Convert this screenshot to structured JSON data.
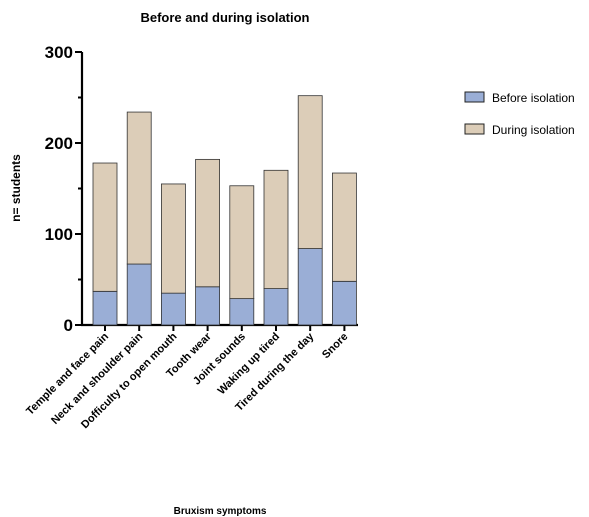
{
  "chart_data": {
    "type": "bar",
    "stacked": true,
    "title": "Before and during isolation",
    "xlabel": "Bruxism symptoms",
    "ylabel": "n= students",
    "ylim": [
      0,
      300
    ],
    "yticks": [
      0,
      100,
      200,
      300
    ],
    "categories": [
      "Temple and face pain",
      "Neck and shoulder pain",
      "Dofficulty to open mouth",
      "Tooth wear",
      "Joint sounds",
      "Waking up tired",
      "Tired during the day",
      "Snore"
    ],
    "series": [
      {
        "name": "Before isolation",
        "color": "#9aaed6",
        "values": [
          37,
          67,
          35,
          42,
          29,
          40,
          84,
          48
        ]
      },
      {
        "name": "During isolation",
        "color": "#dccdb8",
        "values": [
          141,
          167,
          120,
          140,
          124,
          130,
          168,
          119
        ]
      }
    ],
    "grid": false,
    "legend": "right"
  }
}
